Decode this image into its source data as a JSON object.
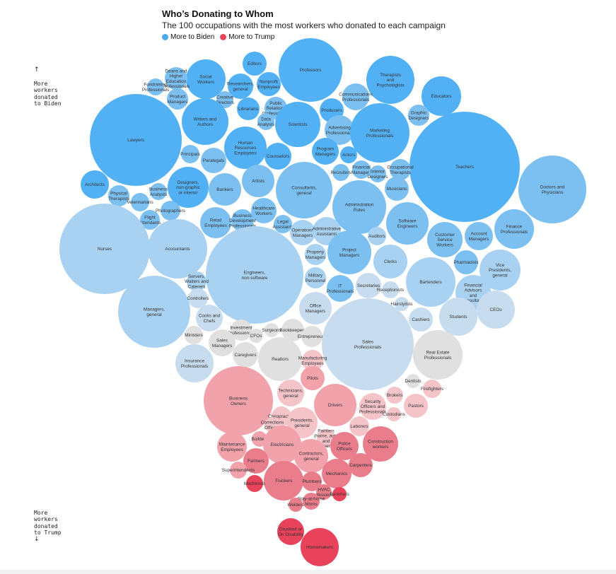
{
  "title": "Who’s Donating to Whom",
  "subtitle": "The 100 occupations with the most workers who donated to each campaign",
  "legend": {
    "biden": {
      "label": "More to Biden",
      "color": "#4aa8ef"
    },
    "trump": {
      "label": "More to Trump",
      "color": "#e9425b"
    }
  },
  "axis_notes": {
    "top": "More\nworkers\ndonated\nto Biden",
    "bottom": "More\nworkers\ndonated\nto Trump"
  },
  "chart_data": {
    "type": "bubble",
    "palette": {
      "b4": "#52b1f5",
      "b3": "#7cc0f2",
      "b2": "#a9d2f2",
      "b1": "#c7dcee",
      "n": "#e0e0e0",
      "r1": "#f4c4c9",
      "r2": "#f1a2ab",
      "r3": "#ea7d8b",
      "r4": "#e9425b"
    },
    "bubbles": [
      {
        "label": "Editors",
        "c": "b4"
      },
      {
        "label": "Professors",
        "c": "b4"
      },
      {
        "label": "Social\nWorkers",
        "c": "b4"
      },
      {
        "label": "Therapists\nand\nPsychologists",
        "c": "b4"
      },
      {
        "label": "Deans and\nHigher\nEducation\nProfessionals",
        "c": "b3"
      },
      {
        "label": "Fundraising\nProfessionals",
        "c": "b3"
      },
      {
        "label": "Product\nManagers",
        "c": "b3"
      },
      {
        "label": "Researchers,\ngeneral",
        "c": "b4"
      },
      {
        "label": "Nonprofit\nEmployees",
        "c": "b4"
      },
      {
        "label": "Educators",
        "c": "b4"
      },
      {
        "label": "Communications\nProfessionals",
        "c": "b3"
      },
      {
        "label": "Creative\nDirectors",
        "c": "b3"
      },
      {
        "label": "Librarians",
        "c": "b4"
      },
      {
        "label": "Public\nRelations\nProfessionals",
        "c": "b3"
      },
      {
        "label": "Producers",
        "c": "b4"
      },
      {
        "label": "Graphic\nDesigners",
        "c": "b3"
      },
      {
        "label": "Lawyers",
        "c": "b4"
      },
      {
        "label": "Writers and\nAuthors",
        "c": "b4"
      },
      {
        "label": "Data\nAnalysts",
        "c": "b3"
      },
      {
        "label": "Scientists",
        "c": "b4"
      },
      {
        "label": "Advertising\nProfessionals",
        "c": "b3"
      },
      {
        "label": "Marketing\nProfessionals",
        "c": "b4"
      },
      {
        "label": "Human\nResources\nEmployees",
        "c": "b4"
      },
      {
        "label": "Program\nManagers",
        "c": "b4"
      },
      {
        "label": "Teachers",
        "c": "b4"
      },
      {
        "label": "Principals",
        "c": "b3"
      },
      {
        "label": "Paralegals",
        "c": "b3"
      },
      {
        "label": "Counselors",
        "c": "b4"
      },
      {
        "label": "Actors",
        "c": "b4"
      },
      {
        "label": "Financial\nManagers",
        "c": "b3"
      },
      {
        "label": "Occupational\nTherapists",
        "c": "b3"
      },
      {
        "label": "Interior\nDesigners",
        "c": "b3"
      },
      {
        "label": "Recruiters",
        "c": "b3"
      },
      {
        "label": "Architects",
        "c": "b4"
      },
      {
        "label": "Designers,\nnon-graphic\nor interior",
        "c": "b4"
      },
      {
        "label": "Artists",
        "c": "b3"
      },
      {
        "label": "Consultants,\ngeneral",
        "c": "b3"
      },
      {
        "label": "Musicians",
        "c": "b3"
      },
      {
        "label": "Doctors and\nPhysicians",
        "c": "b3"
      },
      {
        "label": "Physical\nTherapists",
        "c": "b3"
      },
      {
        "label": "Business\nAnalysts",
        "c": "b3"
      },
      {
        "label": "Bankers",
        "c": "b3"
      },
      {
        "label": "Veterinarians",
        "c": "b3"
      },
      {
        "label": "Administration\nRoles",
        "c": "b3"
      },
      {
        "label": "Photographers",
        "c": "b3"
      },
      {
        "label": "Flight\nAttendants",
        "c": "b3"
      },
      {
        "label": "Healthcare\nWorkers",
        "c": "b3"
      },
      {
        "label": "Retail\nEmployees",
        "c": "b3"
      },
      {
        "label": "Business\nDevelopment\nProfessionals",
        "c": "b3"
      },
      {
        "label": "Legal\nAssistants",
        "c": "b3"
      },
      {
        "label": "Software\nEngineers",
        "c": "b3"
      },
      {
        "label": "Finance\nProfessionals",
        "c": "b3"
      },
      {
        "label": "Customer\nService\nWorkers",
        "c": "b3"
      },
      {
        "label": "Account\nManagers",
        "c": "b3"
      },
      {
        "label": "Nurses",
        "c": "b2"
      },
      {
        "label": "Accountants",
        "c": "b2"
      },
      {
        "label": "Operations\nManagers",
        "c": "b2"
      },
      {
        "label": "Administrative\nAssistants",
        "c": "b2"
      },
      {
        "label": "Auditors",
        "c": "b2"
      },
      {
        "label": "Project\nManagers",
        "c": "b3"
      },
      {
        "label": "Property\nManagers",
        "c": "b2"
      },
      {
        "label": "Engineers,\nnon-software",
        "c": "b2"
      },
      {
        "label": "Clerks",
        "c": "b2"
      },
      {
        "label": "Pharmacists",
        "c": "b3"
      },
      {
        "label": "Vice\nPresidents,\ngeneral",
        "c": "b2"
      },
      {
        "label": "Military\nPersonnel",
        "c": "b2"
      },
      {
        "label": "IT\nProfessionals",
        "c": "b3"
      },
      {
        "label": "Bartenders",
        "c": "b2"
      },
      {
        "label": "Servers,\nWaiters and\nCaterers",
        "c": "b2"
      },
      {
        "label": "Secretaries",
        "c": "b1"
      },
      {
        "label": "Receptionists",
        "c": "b1"
      },
      {
        "label": "Financial\nAdvisors\nand\nConsultants",
        "c": "b2"
      },
      {
        "label": "Managers,\ngeneral",
        "c": "b2"
      },
      {
        "label": "Controllers",
        "c": "b1"
      },
      {
        "label": "Office\nManagers",
        "c": "b1"
      },
      {
        "label": "CEOs",
        "c": "b1"
      },
      {
        "label": "Hairstylists",
        "c": "b1"
      },
      {
        "label": "Cooks and\nChefs",
        "c": "b1"
      },
      {
        "label": "Students",
        "c": "b1"
      },
      {
        "label": "Cashiers",
        "c": "b1"
      },
      {
        "label": "Ministers",
        "c": "n"
      },
      {
        "label": "Investment\nProfessionals",
        "c": "n"
      },
      {
        "label": "Surgeons",
        "c": "n"
      },
      {
        "label": "Bookkeepers",
        "c": "n"
      },
      {
        "label": "CFOs",
        "c": "n"
      },
      {
        "label": "Entrepreneurs",
        "c": "n"
      },
      {
        "label": "Sales\nManagers",
        "c": "n"
      },
      {
        "label": "Sales\nProfessionals",
        "c": "b1"
      },
      {
        "label": "Real Estate\nProfessionals",
        "c": "n"
      },
      {
        "label": "Caregivers",
        "c": "n"
      },
      {
        "label": "Insurance\nProfessionals",
        "c": "b1"
      },
      {
        "label": "Realtors",
        "c": "n"
      },
      {
        "label": "Manufacturing\nEmployees",
        "c": "r1"
      },
      {
        "label": "Pilots",
        "c": "r2"
      },
      {
        "label": "Dentists",
        "c": "n"
      },
      {
        "label": "Firefighters",
        "c": "r1"
      },
      {
        "label": "Business\nOwners",
        "c": "r2"
      },
      {
        "label": "Technicians,\ngeneral",
        "c": "r1"
      },
      {
        "label": "Drivers",
        "c": "r2"
      },
      {
        "label": "Brokers",
        "c": "r1"
      },
      {
        "label": "Security\nOfficers and\nProfessionals",
        "c": "r1"
      },
      {
        "label": "Pastors",
        "c": "r1"
      },
      {
        "label": "Custodians",
        "c": "r1"
      },
      {
        "label": "Chiropractors",
        "c": "r1"
      },
      {
        "label": "Corrections\nOfficers",
        "c": "r1"
      },
      {
        "label": "Presidents,\ngeneral",
        "c": "r1"
      },
      {
        "label": "Laborers",
        "c": "r1"
      },
      {
        "label": "Painters\n(home, auto\nand\ncommercial)",
        "c": "r1"
      },
      {
        "label": "Builders",
        "c": "r2"
      },
      {
        "label": "Maintenance\nEmployees",
        "c": "r2"
      },
      {
        "label": "Electricians",
        "c": "r2"
      },
      {
        "label": "Contractors,\ngeneral",
        "c": "r2"
      },
      {
        "label": "Police\nOfficers",
        "c": "r3"
      },
      {
        "label": "Construction\nworkers",
        "c": "r3"
      },
      {
        "label": "Farmers",
        "c": "r3"
      },
      {
        "label": "Carpenters",
        "c": "r3"
      },
      {
        "label": "Superintendents",
        "c": "r2"
      },
      {
        "label": "Mechanics",
        "c": "r3"
      },
      {
        "label": "Truckers",
        "c": "r3"
      },
      {
        "label": "Plumbers",
        "c": "r3"
      },
      {
        "label": "Machinists",
        "c": "r4"
      },
      {
        "label": "HVAC\nProfessionals",
        "c": "r3"
      },
      {
        "label": "Ranchers",
        "c": "r4"
      },
      {
        "label": "Stay-at-home\nMoms",
        "c": "r3"
      },
      {
        "label": "Welders",
        "c": "r3"
      },
      {
        "label": "Disabled or\nOn Disability",
        "c": "r4"
      },
      {
        "label": "Homemakers",
        "c": "r4"
      }
    ]
  }
}
